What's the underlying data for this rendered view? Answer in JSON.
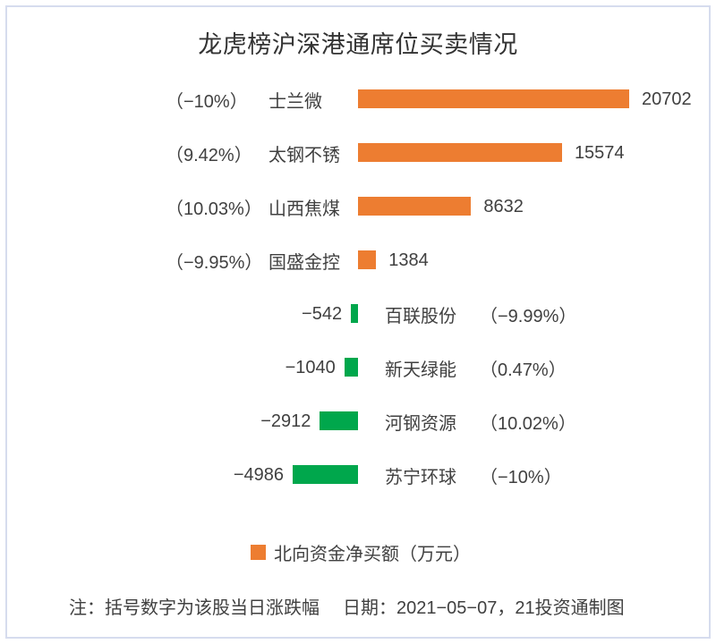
{
  "title": "龙虎榜沪深港通席位买卖情况",
  "legend": {
    "label": "北向资金净买额（万元）"
  },
  "footer": {
    "note": "注：括号数字为该股当日涨跌幅",
    "date": "日期：2021−05−07，21投资通制图"
  },
  "colors": {
    "positive": "#ed7d31",
    "negative": "#00a74c",
    "text": "#404040",
    "title_text": "#333333",
    "border": "#d6dcee",
    "background": "#ffffff"
  },
  "chart_data": {
    "type": "bar",
    "orientation": "horizontal",
    "title": "龙虎榜沪深港通席位买卖情况",
    "legend": [
      "北向资金净买额（万元）"
    ],
    "unit": "万元",
    "categories": [
      "士兰微",
      "太钢不锈",
      "山西焦煤",
      "国盛金控",
      "百联股份",
      "新天绿能",
      "河钢资源",
      "苏宁环球"
    ],
    "values": [
      20702,
      15574,
      8632,
      1384,
      -542,
      -1040,
      -2912,
      -4986
    ],
    "value_labels": [
      "20702",
      "15574",
      "8632",
      "1384",
      "−542",
      "−1040",
      "−2912",
      "−4986"
    ],
    "pct_change_labels": [
      "（−10%）",
      "（9.42%）",
      "（10.03%）",
      "（−9.95%）",
      "（−9.99%）",
      "（0.47%）",
      "（10.02%）",
      "（−10%）"
    ],
    "pct_change_values": [
      -10,
      9.42,
      10.03,
      -9.95,
      -9.99,
      0.47,
      10.02,
      -10
    ],
    "axis": {
      "zero_position": "center",
      "gridlines": false,
      "axes_shown": false
    },
    "note": "注：括号数字为该股当日涨跌幅",
    "date": "2021−05−07",
    "source": "21投资通制图"
  }
}
